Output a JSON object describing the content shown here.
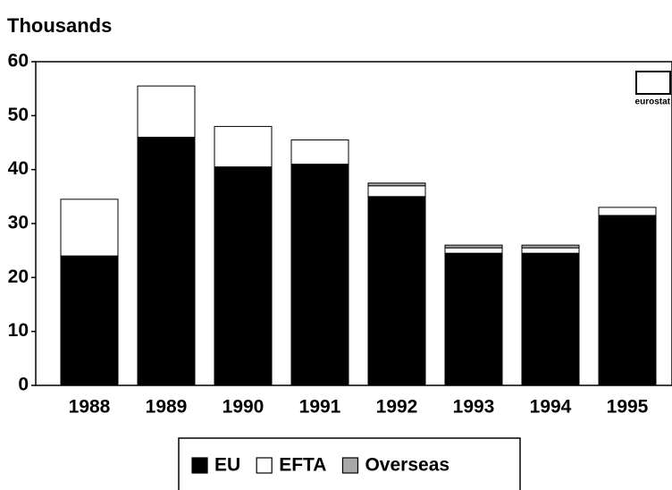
{
  "chart_data": {
    "type": "stacked_bar",
    "title": "Thousands",
    "logo_text": "eurostat",
    "categories": [
      "1988",
      "1989",
      "1990",
      "1991",
      "1992",
      "1993",
      "1994",
      "1995"
    ],
    "series": [
      {
        "name": "EU",
        "color": "#000000",
        "values": [
          24,
          46,
          40.5,
          41,
          35,
          24.5,
          24.5,
          31.5
        ]
      },
      {
        "name": "EFTA",
        "color": "#ffffff",
        "values": [
          10.5,
          9.5,
          7.5,
          4.5,
          2,
          1,
          1,
          1.5
        ]
      },
      {
        "name": "Overseas",
        "color": "#a8a8a8",
        "values": [
          0,
          0,
          0,
          0,
          0.5,
          0.5,
          0.5,
          0
        ]
      }
    ],
    "ylim": [
      0,
      60
    ],
    "yticks": [
      0,
      10,
      20,
      30,
      40,
      50,
      60
    ]
  }
}
